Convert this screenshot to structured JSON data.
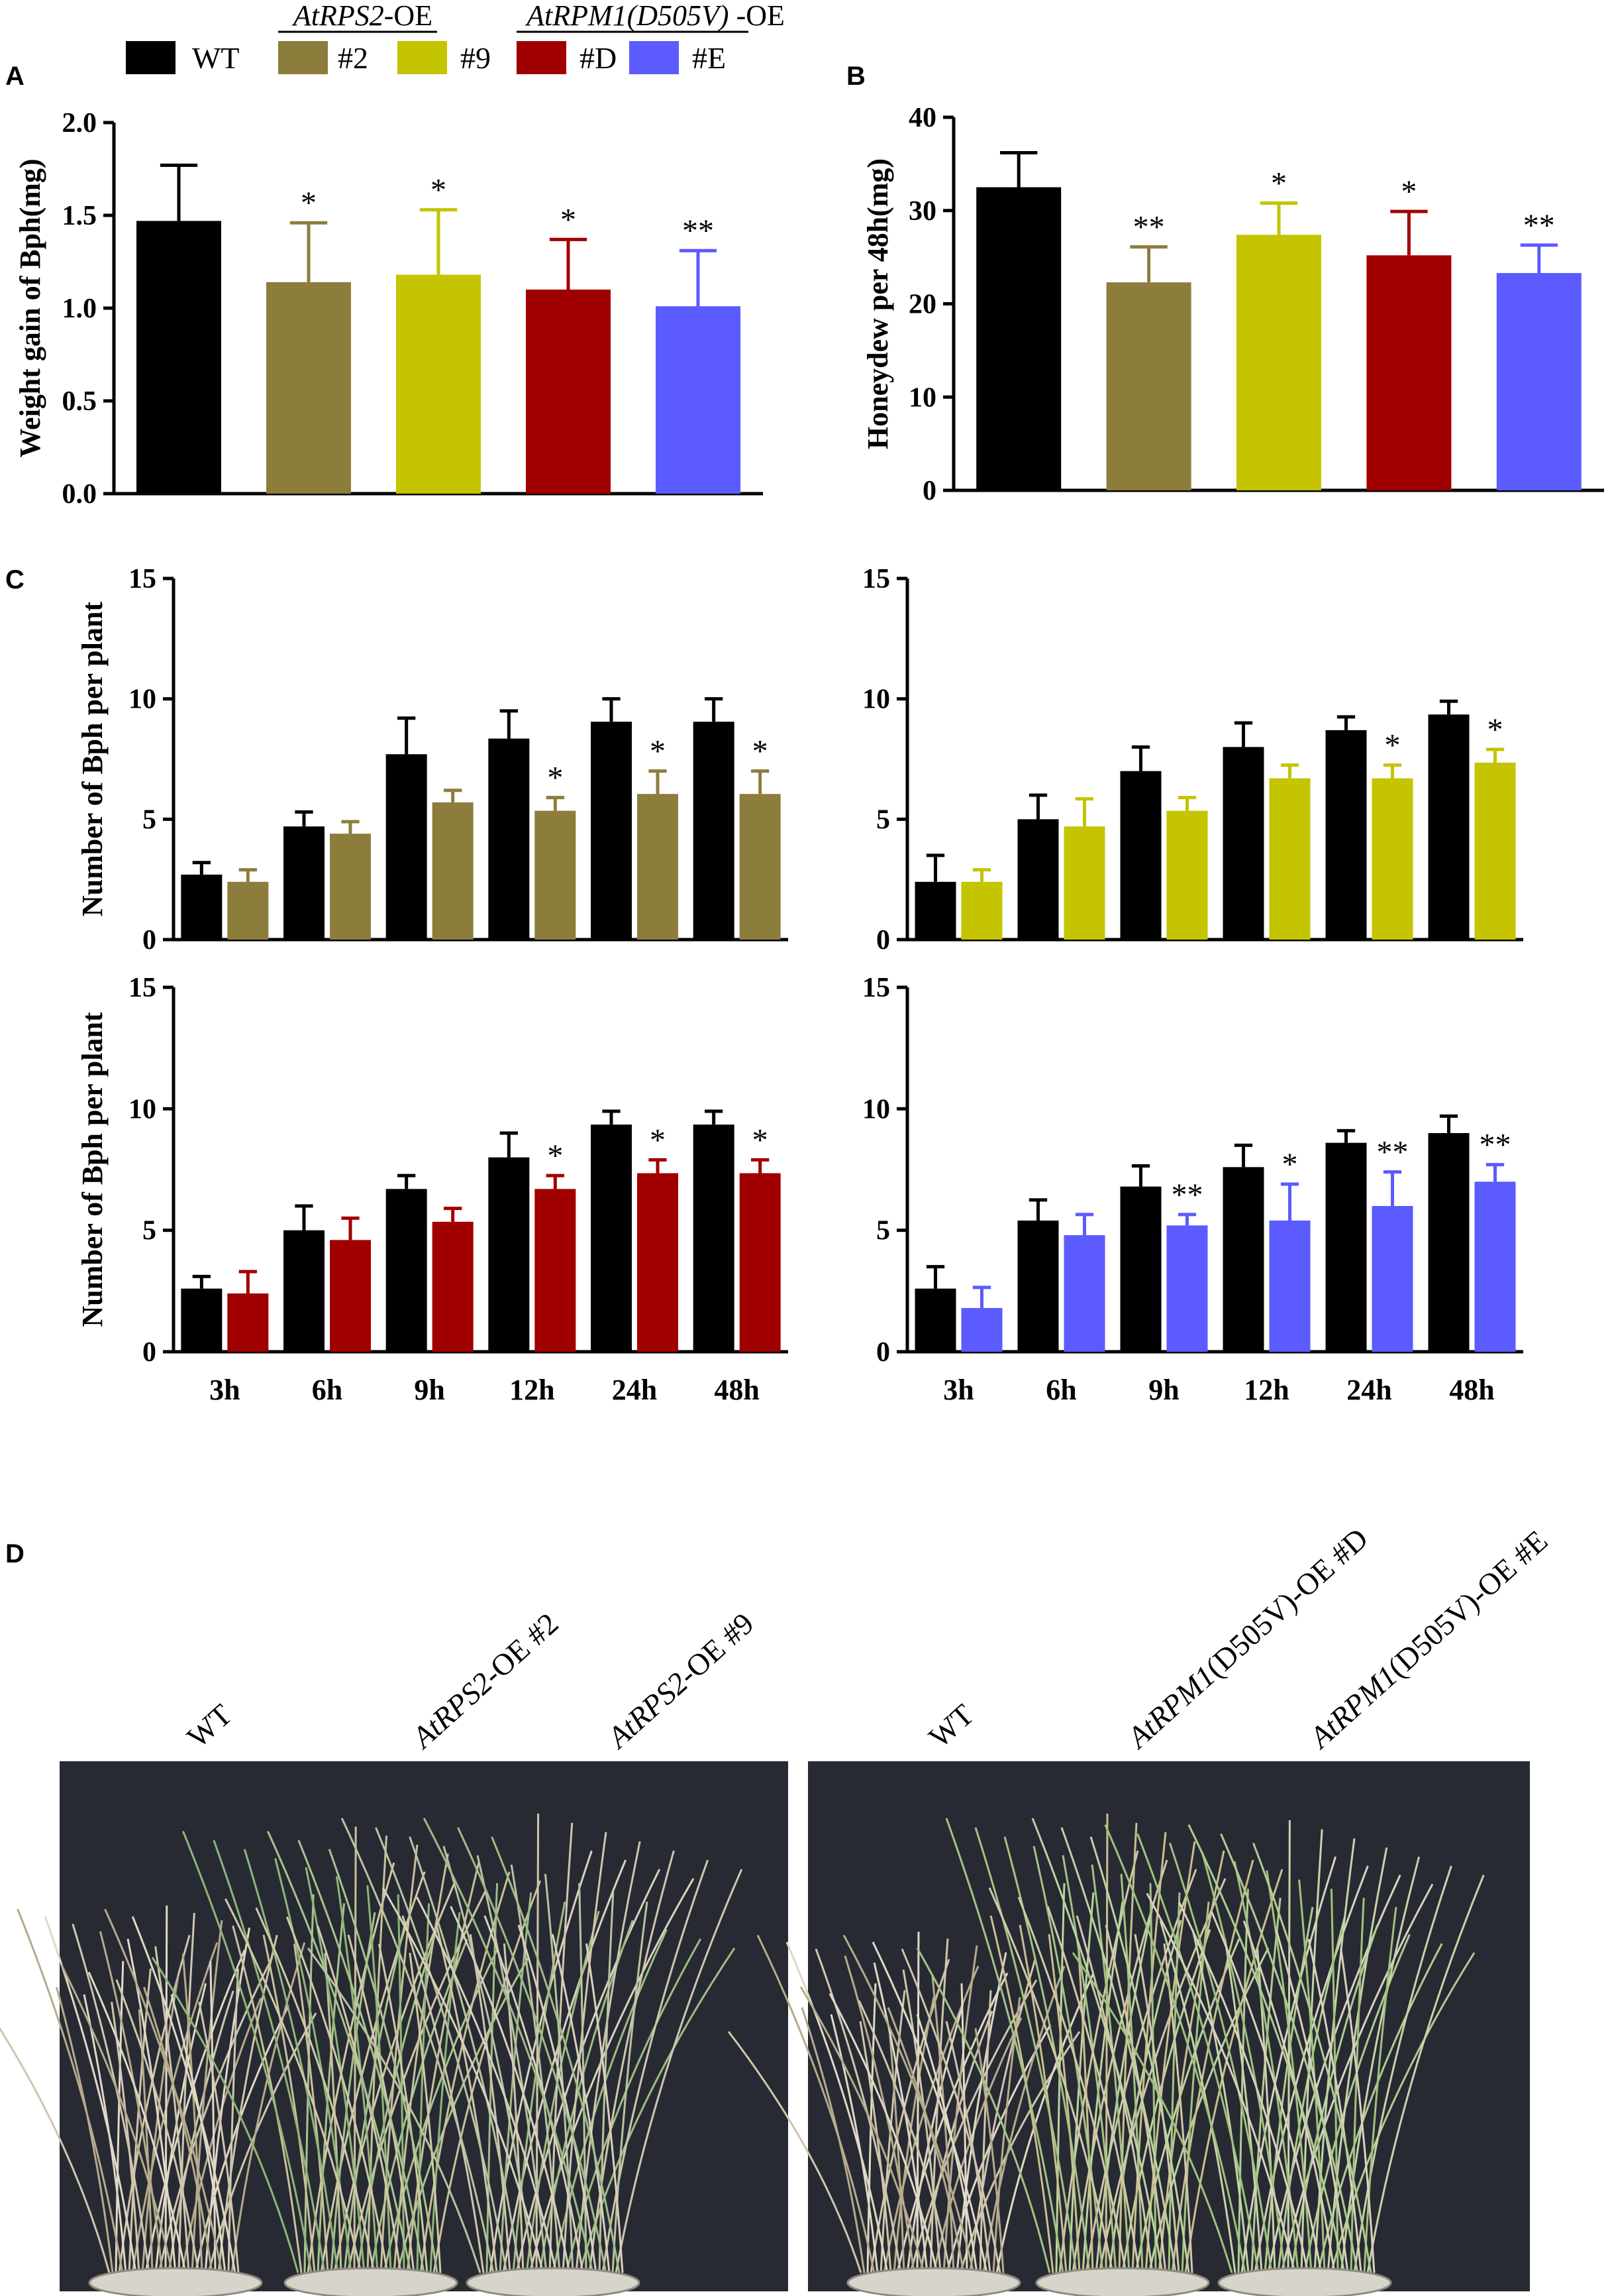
{
  "colors": {
    "WT": "#000000",
    "#2": "#8d7d3c",
    "#9": "#c4c400",
    "#D": "#a00000",
    "#E": "#5b5bff"
  },
  "legend": {
    "group1_label_italic": "AtRPS2",
    "group1_label_suffix": "-OE",
    "group2_label_italic": "AtRPM1(D505V)",
    "group2_label_suffix": " -OE",
    "entries": [
      {
        "label": "WT",
        "color": "#000000"
      },
      {
        "label": "#2",
        "color": "#8d7d3c"
      },
      {
        "label": "#9",
        "color": "#c4c400"
      },
      {
        "label": "#D",
        "color": "#a00000"
      },
      {
        "label": "#E",
        "color": "#5b5bff"
      }
    ]
  },
  "panel_letters": {
    "A": "A",
    "B": "B",
    "C": "C",
    "D": "D"
  },
  "chart_data": [
    {
      "id": "A",
      "type": "bar",
      "ylabel": "Weight  gain of Bph(mg)",
      "ylim": [
        0,
        2.0
      ],
      "yticks": [
        "0.0",
        "0.5",
        "1.0",
        "1.5",
        "2.0"
      ],
      "categories": [
        "WT",
        "#2",
        "#9",
        "#D",
        "#E"
      ],
      "values": [
        1.47,
        1.14,
        1.18,
        1.1,
        1.01
      ],
      "errors": [
        0.3,
        0.32,
        0.35,
        0.27,
        0.3
      ],
      "sig": [
        "",
        "*",
        "*",
        "*",
        "**"
      ]
    },
    {
      "id": "B",
      "type": "bar",
      "ylabel": "Honeydew per 48h(mg)",
      "ylim": [
        0,
        40
      ],
      "yticks": [
        "0",
        "10",
        "20",
        "30",
        "40"
      ],
      "categories": [
        "WT",
        "#2",
        "#9",
        "#D",
        "#E"
      ],
      "values": [
        32.5,
        22.3,
        27.4,
        25.2,
        23.3
      ],
      "errors": [
        3.7,
        3.8,
        3.4,
        4.7,
        3.0
      ],
      "sig": [
        "",
        "**",
        "*",
        "*",
        "**"
      ]
    },
    {
      "id": "C1",
      "type": "bar",
      "ylabel": "Number of Bph per plant",
      "ylim": [
        0,
        15
      ],
      "yticks": [
        "0",
        "5",
        "10",
        "15"
      ],
      "categories": [
        "3h",
        "6h",
        "9h",
        "12h",
        "24h",
        "48h"
      ],
      "series": [
        {
          "name": "WT",
          "values": [
            2.7,
            4.7,
            7.7,
            8.35,
            9.05,
            9.05
          ],
          "errors": [
            0.5,
            0.6,
            1.5,
            1.15,
            0.95,
            0.95
          ]
        },
        {
          "name": "#2",
          "values": [
            2.4,
            4.4,
            5.7,
            5.35,
            6.05,
            6.05
          ],
          "errors": [
            0.5,
            0.5,
            0.5,
            0.55,
            0.95,
            0.95
          ]
        }
      ],
      "sig": [
        [
          "",
          ""
        ],
        [
          "",
          ""
        ],
        [
          "",
          ""
        ],
        [
          "",
          "*"
        ],
        [
          "",
          "*"
        ],
        [
          "",
          "*"
        ]
      ]
    },
    {
      "id": "C2",
      "type": "bar",
      "ylabel": "",
      "ylim": [
        0,
        15
      ],
      "yticks": [
        "0",
        "5",
        "10",
        "15"
      ],
      "categories": [
        "3h",
        "6h",
        "9h",
        "12h",
        "24h",
        "48h"
      ],
      "series": [
        {
          "name": "WT",
          "values": [
            2.4,
            5.0,
            7.0,
            8.0,
            8.7,
            9.35
          ],
          "errors": [
            1.1,
            1.0,
            1.0,
            1.0,
            0.55,
            0.55
          ]
        },
        {
          "name": "#9",
          "values": [
            2.4,
            4.7,
            5.35,
            6.7,
            6.7,
            7.35
          ],
          "errors": [
            0.5,
            1.15,
            0.55,
            0.55,
            0.55,
            0.55
          ]
        }
      ],
      "sig": [
        [
          "",
          ""
        ],
        [
          "",
          ""
        ],
        [
          "",
          ""
        ],
        [
          "",
          ""
        ],
        [
          "",
          "*"
        ],
        [
          "",
          "*"
        ]
      ]
    },
    {
      "id": "C3",
      "type": "bar",
      "ylabel": "Number of Bph per plant",
      "ylim": [
        0,
        15
      ],
      "yticks": [
        "0",
        "5",
        "10",
        "15"
      ],
      "categories": [
        "3h",
        "6h",
        "9h",
        "12h",
        "24h",
        "48h"
      ],
      "series": [
        {
          "name": "WT",
          "values": [
            2.6,
            5.0,
            6.7,
            8.0,
            9.35,
            9.35
          ],
          "errors": [
            0.5,
            1.0,
            0.55,
            1.0,
            0.55,
            0.55
          ]
        },
        {
          "name": "#D",
          "values": [
            2.4,
            4.6,
            5.35,
            6.7,
            7.35,
            7.35
          ],
          "errors": [
            0.9,
            0.9,
            0.55,
            0.55,
            0.55,
            0.55
          ]
        }
      ],
      "sig": [
        [
          "",
          ""
        ],
        [
          "",
          ""
        ],
        [
          "",
          ""
        ],
        [
          "",
          "*"
        ],
        [
          "",
          "*"
        ],
        [
          "",
          "*"
        ]
      ]
    },
    {
      "id": "C4",
      "type": "bar",
      "ylabel": "",
      "ylim": [
        0,
        15
      ],
      "yticks": [
        "0",
        "5",
        "10",
        "15"
      ],
      "categories": [
        "3h",
        "6h",
        "9h",
        "12h",
        "24h",
        "48h"
      ],
      "series": [
        {
          "name": "WT",
          "values": [
            2.6,
            5.4,
            6.8,
            7.6,
            8.6,
            9.0
          ],
          "errors": [
            0.9,
            0.85,
            0.85,
            0.9,
            0.5,
            0.7
          ]
        },
        {
          "name": "#E",
          "values": [
            1.8,
            4.8,
            5.2,
            5.4,
            6.0,
            7.0
          ],
          "errors": [
            0.85,
            0.85,
            0.45,
            1.5,
            1.4,
            0.7
          ]
        }
      ],
      "sig": [
        [
          "",
          ""
        ],
        [
          "",
          ""
        ],
        [
          "",
          "**"
        ],
        [
          "",
          "*"
        ],
        [
          "",
          "**"
        ],
        [
          "",
          "**"
        ]
      ]
    }
  ],
  "photos": {
    "left_labels": [
      {
        "italic": "",
        "text": "WT"
      },
      {
        "italic": "AtRPS2",
        "text": "-OE #2"
      },
      {
        "italic": "AtRPS2",
        "text": "-OE #9"
      }
    ],
    "right_labels": [
      {
        "italic": "",
        "text": "WT"
      },
      {
        "italic": "AtRPM1",
        "text": "(D505V)-OE #D"
      },
      {
        "italic": "AtRPM1",
        "text": "(D505V)-OE #E"
      }
    ]
  }
}
